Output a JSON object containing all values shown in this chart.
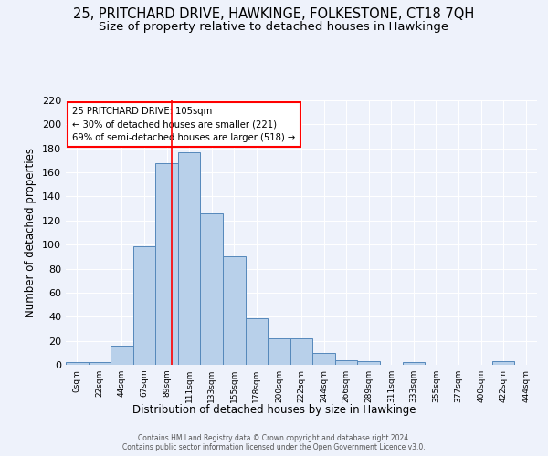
{
  "title": "25, PRITCHARD DRIVE, HAWKINGE, FOLKESTONE, CT18 7QH",
  "subtitle": "Size of property relative to detached houses in Hawkinge",
  "xlabel": "Distribution of detached houses by size in Hawkinge",
  "ylabel": "Number of detached properties",
  "footer_line1": "Contains HM Land Registry data © Crown copyright and database right 2024.",
  "footer_line2": "Contains public sector information licensed under the Open Government Licence v3.0.",
  "bin_labels": [
    "0sqm",
    "22sqm",
    "44sqm",
    "67sqm",
    "89sqm",
    "111sqm",
    "133sqm",
    "155sqm",
    "178sqm",
    "200sqm",
    "222sqm",
    "244sqm",
    "266sqm",
    "289sqm",
    "311sqm",
    "333sqm",
    "355sqm",
    "377sqm",
    "400sqm",
    "422sqm",
    "444sqm"
  ],
  "bar_values": [
    2,
    2,
    16,
    99,
    168,
    177,
    126,
    90,
    39,
    22,
    22,
    10,
    4,
    3,
    0,
    2,
    0,
    0,
    0,
    3,
    0
  ],
  "bar_color": "#b8d0ea",
  "bar_edge_color": "#5588bb",
  "bar_width": 1.0,
  "red_line_x": 4.73,
  "annotation_title": "25 PRITCHARD DRIVE: 105sqm",
  "annotation_line1": "← 30% of detached houses are smaller (221)",
  "annotation_line2": "69% of semi-detached houses are larger (518) →",
  "ylim": [
    0,
    220
  ],
  "yticks": [
    0,
    20,
    40,
    60,
    80,
    100,
    120,
    140,
    160,
    180,
    200,
    220
  ],
  "background_color": "#eef2fb",
  "grid_color": "#ffffff",
  "title_fontsize": 10.5,
  "subtitle_fontsize": 9.5,
  "n_bins": 21
}
